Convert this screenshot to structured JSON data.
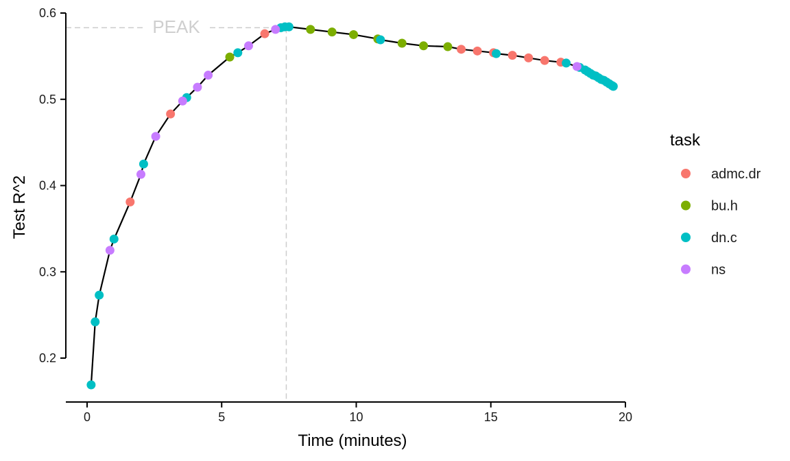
{
  "chart_data": {
    "type": "scatter",
    "xlabel": "Time (minutes)",
    "ylabel": "Test R^2",
    "xlim": [
      0,
      20
    ],
    "ylim": [
      0.15,
      0.6
    ],
    "x_ticks": [
      0,
      5,
      10,
      15,
      20
    ],
    "y_ticks": [
      0.2,
      0.3,
      0.4,
      0.5,
      0.6
    ],
    "grid": false,
    "legend_placement": "right",
    "legend_title": "task",
    "peak": {
      "label": "PEAK",
      "x": 7.4,
      "y": 0.583
    },
    "curve": {
      "color": "#000000"
    },
    "series": [
      {
        "name": "admc.dr",
        "color": "#F8766D",
        "points": [
          [
            1.6,
            0.381
          ],
          [
            3.1,
            0.483
          ],
          [
            6.6,
            0.576
          ],
          [
            13.9,
            0.558
          ],
          [
            14.5,
            0.556
          ],
          [
            15.1,
            0.554
          ],
          [
            15.8,
            0.551
          ],
          [
            16.4,
            0.548
          ],
          [
            17.0,
            0.545
          ],
          [
            17.6,
            0.543
          ]
        ]
      },
      {
        "name": "bu.h",
        "color": "#7CAE00",
        "points": [
          [
            5.3,
            0.549
          ],
          [
            8.3,
            0.581
          ],
          [
            9.1,
            0.578
          ],
          [
            9.9,
            0.575
          ],
          [
            10.8,
            0.57
          ],
          [
            11.7,
            0.565
          ],
          [
            12.5,
            0.562
          ],
          [
            13.4,
            0.561
          ]
        ]
      },
      {
        "name": "dn.c",
        "color": "#00BFC4",
        "points": [
          [
            0.15,
            0.169
          ],
          [
            0.3,
            0.242
          ],
          [
            0.45,
            0.273
          ],
          [
            1.0,
            0.338
          ],
          [
            2.1,
            0.425
          ],
          [
            3.7,
            0.502
          ],
          [
            5.6,
            0.554
          ],
          [
            7.2,
            0.583
          ],
          [
            7.35,
            0.584
          ],
          [
            7.5,
            0.584
          ],
          [
            10.9,
            0.569
          ],
          [
            15.2,
            0.553
          ],
          [
            17.8,
            0.542
          ],
          [
            18.3,
            0.537
          ],
          [
            18.5,
            0.534
          ],
          [
            18.6,
            0.532
          ],
          [
            18.7,
            0.53
          ],
          [
            18.8,
            0.528
          ],
          [
            18.9,
            0.527
          ],
          [
            19.0,
            0.525
          ],
          [
            19.1,
            0.523
          ],
          [
            19.2,
            0.522
          ],
          [
            19.3,
            0.52
          ],
          [
            19.4,
            0.518
          ],
          [
            19.5,
            0.516
          ],
          [
            19.55,
            0.515
          ]
        ]
      },
      {
        "name": "ns",
        "color": "#C77CFF",
        "points": [
          [
            0.85,
            0.325
          ],
          [
            2.0,
            0.413
          ],
          [
            2.55,
            0.457
          ],
          [
            3.55,
            0.498
          ],
          [
            4.1,
            0.514
          ],
          [
            4.5,
            0.528
          ],
          [
            6.0,
            0.562
          ],
          [
            7.0,
            0.581
          ],
          [
            18.2,
            0.538
          ]
        ]
      }
    ]
  }
}
